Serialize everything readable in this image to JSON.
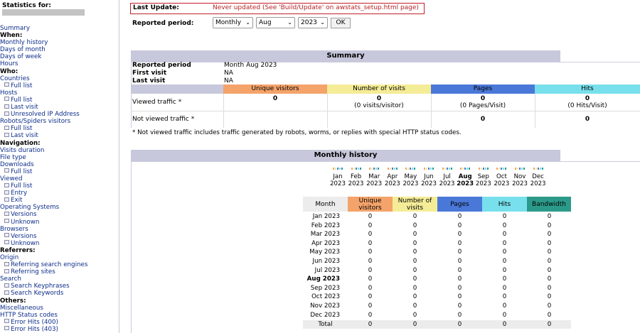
{
  "sidebar": {
    "stats_for_label": "Statistics for:",
    "items": [
      {
        "type": "top",
        "label": "Summary"
      },
      {
        "type": "section",
        "label": "When:"
      },
      {
        "type": "top",
        "label": "Monthly history"
      },
      {
        "type": "top",
        "label": "Days of month"
      },
      {
        "type": "top",
        "label": "Days of week"
      },
      {
        "type": "top",
        "label": "Hours"
      },
      {
        "type": "section",
        "label": "Who:"
      },
      {
        "type": "top",
        "label": "Countries"
      },
      {
        "type": "sub",
        "label": "Full list"
      },
      {
        "type": "top",
        "label": "Hosts"
      },
      {
        "type": "sub",
        "label": "Full list"
      },
      {
        "type": "sub",
        "label": "Last visit"
      },
      {
        "type": "sub",
        "label": "Unresolved IP Address"
      },
      {
        "type": "top",
        "label": "Robots/Spiders visitors"
      },
      {
        "type": "sub",
        "label": "Full list"
      },
      {
        "type": "sub",
        "label": "Last visit"
      },
      {
        "type": "section",
        "label": "Navigation:"
      },
      {
        "type": "top",
        "label": "Visits duration"
      },
      {
        "type": "top",
        "label": "File type"
      },
      {
        "type": "top",
        "label": "Downloads"
      },
      {
        "type": "sub",
        "label": "Full list"
      },
      {
        "type": "top",
        "label": "Viewed"
      },
      {
        "type": "sub",
        "label": "Full list"
      },
      {
        "type": "sub",
        "label": "Entry"
      },
      {
        "type": "sub",
        "label": "Exit"
      },
      {
        "type": "top",
        "label": "Operating Systems"
      },
      {
        "type": "sub",
        "label": "Versions"
      },
      {
        "type": "sub",
        "label": "Unknown"
      },
      {
        "type": "top",
        "label": "Browsers"
      },
      {
        "type": "sub",
        "label": "Versions"
      },
      {
        "type": "sub",
        "label": "Unknown"
      },
      {
        "type": "section",
        "label": "Referrers:"
      },
      {
        "type": "top",
        "label": "Origin"
      },
      {
        "type": "sub",
        "label": "Referring search engines"
      },
      {
        "type": "sub",
        "label": "Referring sites"
      },
      {
        "type": "top",
        "label": "Search"
      },
      {
        "type": "sub",
        "label": "Search Keyphrases"
      },
      {
        "type": "sub",
        "label": "Search Keywords"
      },
      {
        "type": "section",
        "label": "Others:"
      },
      {
        "type": "top",
        "label": "Miscellaneous"
      },
      {
        "type": "top",
        "label": "HTTP Status codes"
      },
      {
        "type": "sub",
        "label": "Error Hits (400)"
      },
      {
        "type": "sub",
        "label": "Error Hits (403)"
      }
    ]
  },
  "header": {
    "last_update_label": "Last Update:",
    "last_update_value": "Never updated (See 'Build/Update' on awstats_setup.html page)",
    "reported_period_label": "Reported period:",
    "period_type": "Monthly",
    "month": "Aug",
    "year": "2023",
    "ok_label": "OK"
  },
  "summary": {
    "title": "Summary",
    "reported_period_label": "Reported period",
    "reported_period_value": "Month Aug 2023",
    "first_visit_label": "First visit",
    "first_visit_value": "NA",
    "last_visit_label": "Last visit",
    "last_visit_value": "NA",
    "columns": [
      "Unique visitors",
      "Number of visits",
      "Pages",
      "Hits"
    ],
    "viewed_label": "Viewed traffic *",
    "viewed": {
      "unique": "0",
      "visits": "0",
      "visits_sub": "(0 visits/visitor)",
      "pages": "0",
      "pages_sub": "(0 Pages/Visit)",
      "hits": "0",
      "hits_sub": "(0 Hits/Visit)"
    },
    "not_viewed_label": "Not viewed traffic *",
    "not_viewed": {
      "pages": "0",
      "hits": "0"
    },
    "footnote": "* Not viewed traffic includes traffic generated by robots, worms, or replies with special HTTP status codes."
  },
  "monthly": {
    "title": "Monthly history",
    "month_labels": [
      "Jan",
      "Feb",
      "Mar",
      "Apr",
      "May",
      "Jun",
      "Jul",
      "Aug",
      "Sep",
      "Oct",
      "Nov",
      "Dec"
    ],
    "year_label": "2023",
    "current_month": "Aug",
    "columns": [
      "Month",
      "Unique visitors",
      "Number of visits",
      "Pages",
      "Hits",
      "Bandwidth"
    ],
    "rows": [
      {
        "month": "Jan 2023",
        "values": [
          "0",
          "0",
          "0",
          "0",
          "0"
        ]
      },
      {
        "month": "Feb 2023",
        "values": [
          "0",
          "0",
          "0",
          "0",
          "0"
        ]
      },
      {
        "month": "Mar 2023",
        "values": [
          "0",
          "0",
          "0",
          "0",
          "0"
        ]
      },
      {
        "month": "Apr 2023",
        "values": [
          "0",
          "0",
          "0",
          "0",
          "0"
        ]
      },
      {
        "month": "May 2023",
        "values": [
          "0",
          "0",
          "0",
          "0",
          "0"
        ]
      },
      {
        "month": "Jun 2023",
        "values": [
          "0",
          "0",
          "0",
          "0",
          "0"
        ]
      },
      {
        "month": "Jul 2023",
        "values": [
          "0",
          "0",
          "0",
          "0",
          "0"
        ]
      },
      {
        "month": "Aug 2023",
        "values": [
          "0",
          "0",
          "0",
          "0",
          "0"
        ]
      },
      {
        "month": "Sep 2023",
        "values": [
          "0",
          "0",
          "0",
          "0",
          "0"
        ]
      },
      {
        "month": "Oct 2023",
        "values": [
          "0",
          "0",
          "0",
          "0",
          "0"
        ]
      },
      {
        "month": "Nov 2023",
        "values": [
          "0",
          "0",
          "0",
          "0",
          "0"
        ]
      },
      {
        "month": "Dec 2023",
        "values": [
          "0",
          "0",
          "0",
          "0",
          "0"
        ]
      }
    ],
    "total_label": "Total",
    "total_values": [
      "0",
      "0",
      "0",
      "0",
      "0"
    ]
  },
  "colors": {
    "unique_visitors": "#f4a36a",
    "visits": "#f5ec97",
    "pages": "#4a78d8",
    "hits": "#78e0ec",
    "bandwidth": "#2c9a8a",
    "section_bar": "#c7c8db",
    "last_update_border": "#c0202a"
  },
  "icons": {
    "select_chevron": "chevron-down-icon",
    "sub_item": "list-icon"
  }
}
